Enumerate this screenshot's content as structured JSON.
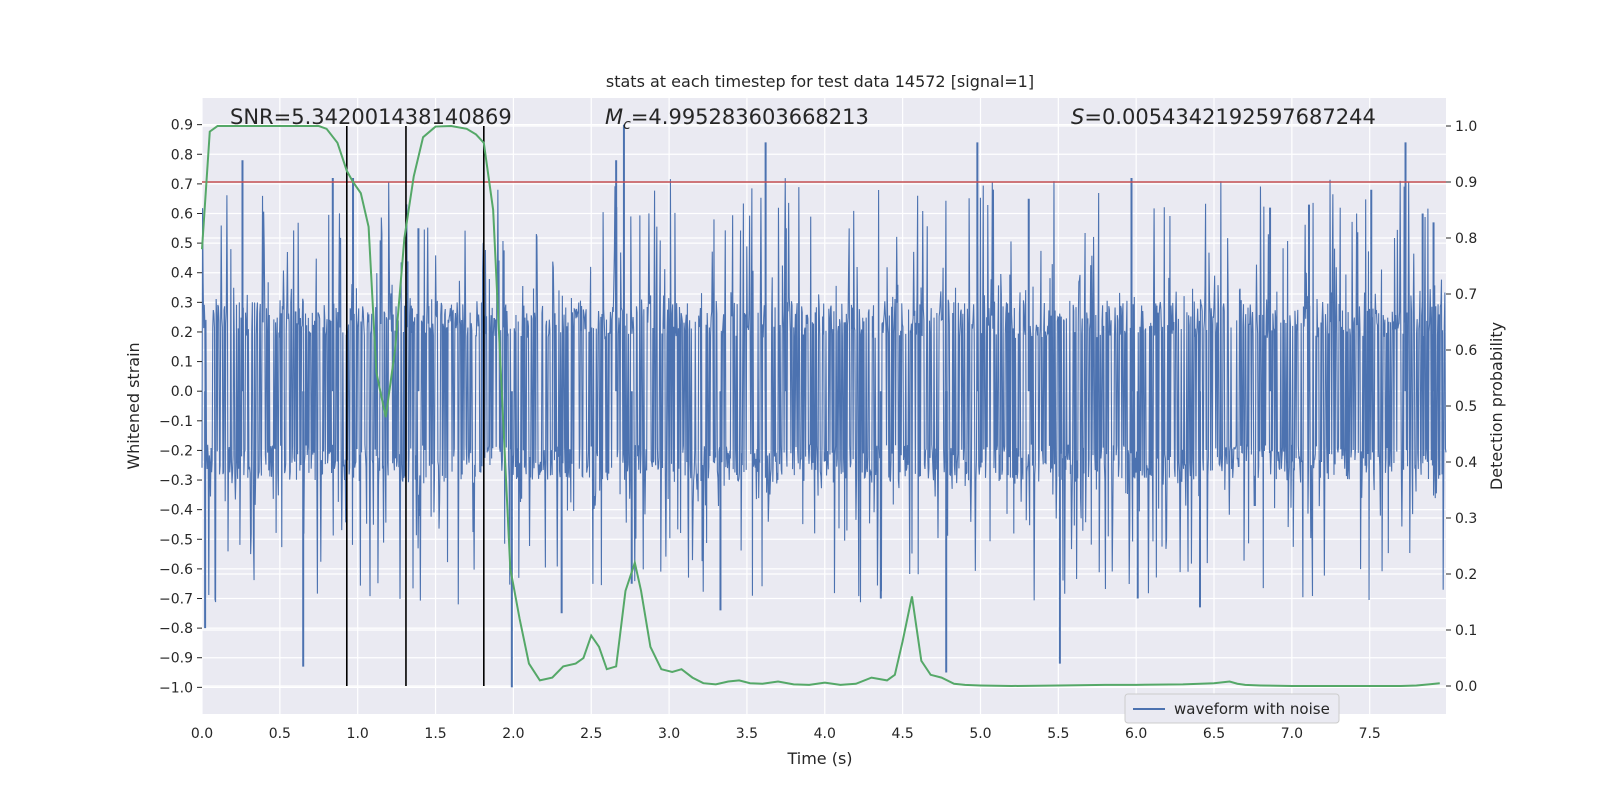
{
  "chart_data": {
    "type": "line",
    "title": "stats at each timestep for test data 14572 [signal=1]",
    "xlabel": "Time (s)",
    "ylabel_left": "Whitened strain",
    "ylabel_right": "Detection probability",
    "xlim": [
      0.0,
      7.99
    ],
    "ylim_left": [
      -1.09,
      0.99
    ],
    "ylim_right": [
      -0.05,
      1.05
    ],
    "x_ticks": [
      "0.0",
      "0.5",
      "1.0",
      "1.5",
      "2.0",
      "2.5",
      "3.0",
      "3.5",
      "4.0",
      "4.5",
      "5.0",
      "5.5",
      "6.0",
      "6.5",
      "7.0",
      "7.5"
    ],
    "y_ticks_left": [
      "0.9",
      "0.8",
      "0.7",
      "0.6",
      "0.5",
      "0.4",
      "0.3",
      "0.2",
      "0.1",
      "0.0",
      "−0.1",
      "−0.2",
      "−0.3",
      "−0.4",
      "−0.5",
      "−0.6",
      "−0.7",
      "−0.8",
      "−0.9",
      "−1.0"
    ],
    "y_ticks_right": [
      "1.0",
      "0.9",
      "0.8",
      "0.7",
      "0.6",
      "0.5",
      "0.4",
      "0.3",
      "0.2",
      "0.1",
      "0.0"
    ],
    "annotations": {
      "snr": "SNR=5.342001438140869",
      "mc_symbol": "M",
      "mc_sub": "c",
      "mc_value": "=4.995283603668213",
      "s_symbol": "S",
      "s_value": "=0.00543421925976872​44"
    },
    "legend": {
      "label": "waveform with noise",
      "location": "lower-right"
    },
    "threshold": 0.9,
    "vertical_markers": [
      0.93,
      1.31,
      1.81
    ],
    "waveform": {
      "name": "waveform with noise",
      "core_amplitude": 0.3,
      "tail_amplitude": 0.72,
      "spikes": [
        [
          0.02,
          -0.8
        ],
        [
          0.26,
          0.78
        ],
        [
          0.65,
          -0.93
        ],
        [
          0.84,
          0.72
        ],
        [
          0.97,
          0.72
        ],
        [
          1.39,
          0.55
        ],
        [
          1.99,
          -1.0
        ],
        [
          2.31,
          -0.75
        ],
        [
          2.66,
          0.78
        ],
        [
          2.71,
          0.9
        ],
        [
          2.76,
          -0.65
        ],
        [
          3.33,
          -0.74
        ],
        [
          3.62,
          0.84
        ],
        [
          3.75,
          0.55
        ],
        [
          4.36,
          -0.7
        ],
        [
          4.78,
          -0.95
        ],
        [
          4.98,
          0.84
        ],
        [
          5.31,
          0.65
        ],
        [
          5.51,
          -0.92
        ],
        [
          5.97,
          0.72
        ],
        [
          6.01,
          -0.7
        ],
        [
          6.41,
          -0.73
        ],
        [
          6.86,
          0.62
        ],
        [
          7.11,
          0.63
        ],
        [
          7.51,
          0.68
        ],
        [
          7.73,
          0.84
        ],
        [
          7.84,
          0.6
        ],
        [
          7.91,
          0.57
        ]
      ]
    },
    "detection_probability": {
      "x": [
        0.0,
        0.05,
        0.1,
        0.2,
        0.4,
        0.6,
        0.75,
        0.8,
        0.87,
        0.93,
        0.97,
        1.02,
        1.07,
        1.12,
        1.18,
        1.24,
        1.3,
        1.36,
        1.42,
        1.5,
        1.6,
        1.7,
        1.76,
        1.81,
        1.87,
        1.93,
        1.98,
        2.04,
        2.1,
        2.17,
        2.25,
        2.32,
        2.4,
        2.45,
        2.5,
        2.55,
        2.6,
        2.66,
        2.72,
        2.78,
        2.82,
        2.88,
        2.95,
        3.02,
        3.08,
        3.15,
        3.22,
        3.3,
        3.38,
        3.45,
        3.52,
        3.6,
        3.7,
        3.8,
        3.9,
        4.0,
        4.1,
        4.2,
        4.3,
        4.4,
        4.45,
        4.5,
        4.56,
        4.62,
        4.68,
        4.75,
        4.83,
        4.9,
        5.0,
        5.2,
        5.5,
        5.8,
        6.0,
        6.3,
        6.5,
        6.6,
        6.65,
        6.7,
        6.8,
        7.0,
        7.3,
        7.5,
        7.7,
        7.8,
        7.88,
        7.95
      ],
      "y": [
        0.78,
        0.99,
        1.0,
        1.0,
        1.0,
        1.0,
        1.0,
        0.995,
        0.97,
        0.92,
        0.9,
        0.88,
        0.82,
        0.56,
        0.48,
        0.6,
        0.8,
        0.91,
        0.98,
        0.999,
        1.0,
        0.995,
        0.985,
        0.97,
        0.85,
        0.5,
        0.21,
        0.12,
        0.04,
        0.01,
        0.015,
        0.035,
        0.04,
        0.05,
        0.09,
        0.07,
        0.03,
        0.035,
        0.17,
        0.22,
        0.17,
        0.07,
        0.03,
        0.025,
        0.03,
        0.015,
        0.005,
        0.003,
        0.008,
        0.01,
        0.005,
        0.004,
        0.008,
        0.003,
        0.002,
        0.006,
        0.002,
        0.004,
        0.015,
        0.01,
        0.02,
        0.08,
        0.16,
        0.045,
        0.02,
        0.015,
        0.004,
        0.002,
        0.001,
        0.0,
        0.001,
        0.002,
        0.002,
        0.003,
        0.005,
        0.008,
        0.004,
        0.002,
        0.001,
        0.0,
        0.0,
        0.0,
        0.0,
        0.001,
        0.003,
        0.005
      ]
    },
    "colors": {
      "background": "#eaeaf2",
      "grid": "#ffffff",
      "waveform": "#4c72b0",
      "probability": "#55a868",
      "threshold": "#c44e52",
      "marker": "#000000"
    }
  }
}
